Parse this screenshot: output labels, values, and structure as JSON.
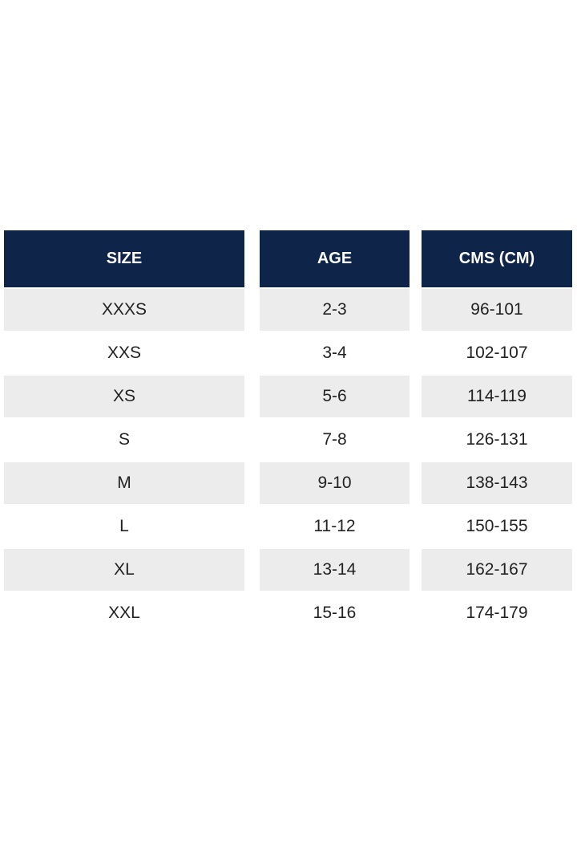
{
  "table": {
    "header": [
      "SIZE",
      "AGE",
      "CMS (CM)"
    ],
    "rows": [
      [
        "XXXS",
        "2-3",
        "96-101"
      ],
      [
        "XXS",
        "3-4",
        "102-107"
      ],
      [
        "XS",
        "5-6",
        "114-119"
      ],
      [
        "S",
        "7-8",
        "126-131"
      ],
      [
        "M",
        "9-10",
        "138-143"
      ],
      [
        "L",
        "11-12",
        "150-155"
      ],
      [
        "XL",
        "13-14",
        "162-167"
      ],
      [
        "XXL",
        "15-16",
        "174-179"
      ]
    ]
  }
}
